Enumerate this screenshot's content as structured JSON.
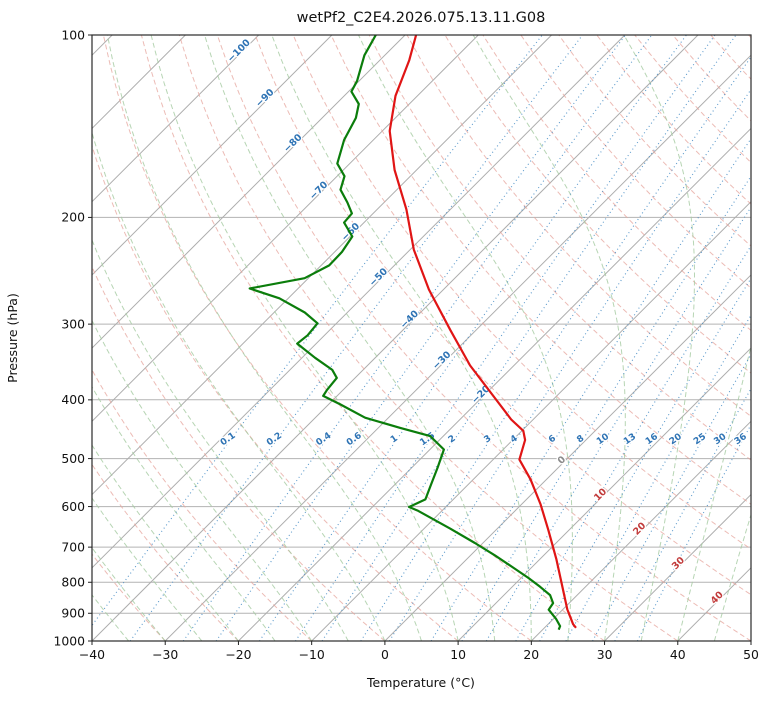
{
  "figure": {
    "title": "wetPf2_C2E4.2026.075.13.11.G08",
    "xlabel": "Temperature (°C)",
    "ylabel": "Pressure (hPa)"
  },
  "chart_data": {
    "type": "line",
    "subtype": "skewT-logP-sounding",
    "title": "wetPf2_C2E4.2026.075.13.11.G08",
    "x_axis": {
      "label": "Temperature (°C)",
      "unit": "°C",
      "range": [
        -40,
        50
      ],
      "ticks": [
        -40,
        -30,
        -20,
        -10,
        0,
        10,
        20,
        30,
        40,
        50
      ],
      "skew_deg": 45
    },
    "y_axis": {
      "label": "Pressure (hPa)",
      "unit": "hPa",
      "scale": "log",
      "range": [
        1000,
        100
      ],
      "ticks": [
        100,
        200,
        300,
        400,
        500,
        600,
        700,
        800,
        900,
        1000
      ]
    },
    "series": [
      {
        "name": "temperature",
        "color": "#e01515",
        "points_p_hPa_T_C": [
          [
            100,
            -78.5
          ],
          [
            110,
            -76
          ],
          [
            126,
            -73
          ],
          [
            144,
            -69
          ],
          [
            167,
            -63
          ],
          [
            194,
            -56
          ],
          [
            226,
            -49.5
          ],
          [
            263,
            -42
          ],
          [
            307,
            -33.5
          ],
          [
            351,
            -26
          ],
          [
            392,
            -19
          ],
          [
            431,
            -13
          ],
          [
            450,
            -9.8
          ],
          [
            466,
            -8.3
          ],
          [
            502,
            -6.4
          ],
          [
            541,
            -2.2
          ],
          [
            595,
            2.6
          ],
          [
            655,
            7.1
          ],
          [
            732,
            12.2
          ],
          [
            804,
            16.3
          ],
          [
            887,
            20.6
          ],
          [
            938,
            23.4
          ],
          [
            951,
            24.3
          ]
        ]
      },
      {
        "name": "dewpoint",
        "color": "#0b7d0b",
        "points_p_hPa_T_C": [
          [
            100,
            -84
          ],
          [
            108,
            -82.8
          ],
          [
            119,
            -80.3
          ],
          [
            124,
            -79.6
          ],
          [
            130,
            -76.9
          ],
          [
            137,
            -75.4
          ],
          [
            149,
            -74
          ],
          [
            163,
            -71.7
          ],
          [
            171,
            -69
          ],
          [
            180,
            -67.7
          ],
          [
            189,
            -65
          ],
          [
            197,
            -62.9
          ],
          [
            204,
            -62.7
          ],
          [
            215,
            -59.7
          ],
          [
            228,
            -59
          ],
          [
            240,
            -58.9
          ],
          [
            252,
            -60.5
          ],
          [
            262,
            -66.6
          ],
          [
            272,
            -61.2
          ],
          [
            287,
            -55.8
          ],
          [
            299,
            -52.6
          ],
          [
            313,
            -52.3
          ],
          [
            323,
            -52.6
          ],
          [
            341,
            -48.2
          ],
          [
            357,
            -44.2
          ],
          [
            368,
            -42.5
          ],
          [
            385,
            -42.2
          ],
          [
            394,
            -41.9
          ],
          [
            407,
            -38.4
          ],
          [
            428,
            -33.2
          ],
          [
            445,
            -27
          ],
          [
            459,
            -21.8
          ],
          [
            483,
            -18.1
          ],
          [
            517,
            -16.5
          ],
          [
            551,
            -15.1
          ],
          [
            584,
            -13.8
          ],
          [
            601,
            -15
          ],
          [
            610,
            -13.2
          ],
          [
            652,
            -6.5
          ],
          [
            689,
            -1.1
          ],
          [
            722,
            3.3
          ],
          [
            755,
            7.3
          ],
          [
            787,
            11
          ],
          [
            814,
            13.8
          ],
          [
            840,
            16.3
          ],
          [
            866,
            17.8
          ],
          [
            888,
            18.1
          ],
          [
            920,
            20.4
          ],
          [
            945,
            21.9
          ],
          [
            958,
            22.2
          ]
        ]
      }
    ],
    "reference_lines": {
      "pressure_gridlines": {
        "color": "#b3b3b3",
        "style": "solid",
        "levels": [
          100,
          200,
          300,
          400,
          500,
          600,
          700,
          800,
          900,
          1000
        ]
      },
      "isotherms": {
        "color": "#adadad",
        "style": "solid",
        "start": -120,
        "end": 50,
        "step": 10,
        "labels": [
          {
            "t": -100,
            "p": 107,
            "color": "#2f74b5"
          },
          {
            "t": -90,
            "p": 128,
            "color": "#2f74b5"
          },
          {
            "t": -80,
            "p": 152,
            "color": "#2f74b5"
          },
          {
            "t": -70,
            "p": 182,
            "color": "#2f74b5"
          },
          {
            "t": -60,
            "p": 213,
            "color": "#2f74b5"
          },
          {
            "t": -50,
            "p": 253,
            "color": "#2f74b5"
          },
          {
            "t": -40,
            "p": 297,
            "color": "#2f74b5"
          },
          {
            "t": -30,
            "p": 347,
            "color": "#2f74b5"
          },
          {
            "t": -20,
            "p": 395,
            "color": "#2f74b5"
          },
          {
            "t": 0,
            "p": 507,
            "color": "#8a8a8a"
          },
          {
            "t": 10,
            "p": 578,
            "color": "#c23b3b"
          },
          {
            "t": 20,
            "p": 658,
            "color": "#c23b3b"
          },
          {
            "t": 30,
            "p": 750,
            "color": "#c23b3b"
          },
          {
            "t": 40,
            "p": 855,
            "color": "#c23b3b"
          }
        ]
      },
      "dry_adiabats": {
        "color": "#e5a49c",
        "style": "dashed",
        "theta_start": -40,
        "theta_end": 190,
        "step": 10
      },
      "moist_adiabats": {
        "color": "#a5cba1",
        "style": "dashed",
        "t0_start": -40,
        "t0_end": 45,
        "step": 5
      },
      "mixing_ratio": {
        "color": "#4a8fc7",
        "style": "dotted",
        "values_g_kg": [
          0.1,
          0.2,
          0.4,
          0.6,
          1,
          1.5,
          2,
          3,
          4,
          6,
          8,
          10,
          13,
          16,
          20,
          25,
          30,
          36
        ],
        "label_p_hPa": 468,
        "label_color": "#2f74b5"
      }
    }
  }
}
